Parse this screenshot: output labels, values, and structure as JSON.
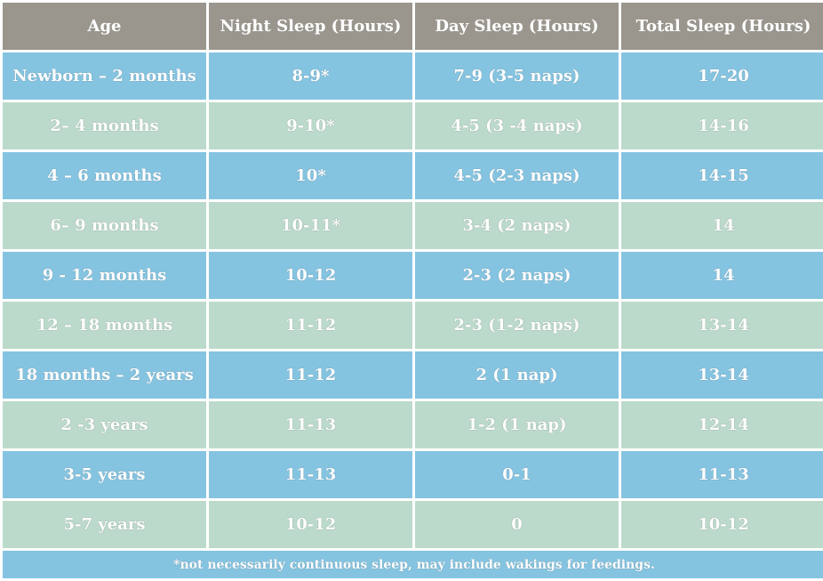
{
  "colors": {
    "header_bg": "#9a968e",
    "row_blue": "#85c4e1",
    "row_green": "#bcdacb",
    "text": "#ffffff"
  },
  "table": {
    "headers": [
      "Age",
      "Night Sleep (Hours)",
      "Day Sleep (Hours)",
      "Total Sleep (Hours)"
    ],
    "rows": [
      [
        "Newborn – 2 months",
        "8-9*",
        "7-9 (3-5 naps)",
        "17-20"
      ],
      [
        "2– 4 months",
        "9-10*",
        "4-5 (3 -4 naps)",
        "14-16"
      ],
      [
        "4 – 6 months",
        "10*",
        "4-5 (2-3 naps)",
        "14-15"
      ],
      [
        "6– 9 months",
        "10-11*",
        "3-4 (2 naps)",
        "14"
      ],
      [
        "9 - 12 months",
        "10-12",
        "2-3 (2 naps)",
        "14"
      ],
      [
        "12 – 18 months",
        "11-12",
        "2-3 (1-2 naps)",
        "13-14"
      ],
      [
        "18 months – 2 years",
        "11-12",
        "2 (1 nap)",
        "13-14"
      ],
      [
        "2 -3 years",
        "11-13",
        "1-2 (1 nap)",
        "12-14"
      ],
      [
        "3-5 years",
        "11-13",
        "0-1",
        "11-13"
      ],
      [
        "5-7 years",
        "10-12",
        "0",
        "10-12"
      ]
    ],
    "footnote": "*not necessarily continuous sleep, may include wakings for feedings."
  }
}
